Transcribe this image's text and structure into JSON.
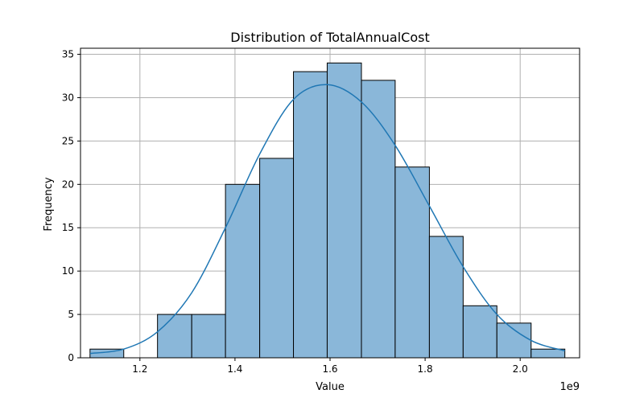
{
  "chart_data": {
    "type": "bar",
    "title": "Distribution of TotalAnnualCost",
    "xlabel": "Value",
    "ylabel": "Frequency",
    "x_offset_label": "1e9",
    "xlim": [
      1.075,
      2.125
    ],
    "ylim": [
      0,
      35.7
    ],
    "grid": true,
    "bin_edges": [
      1.095,
      1.166,
      1.237,
      1.309,
      1.38,
      1.452,
      1.523,
      1.594,
      1.666,
      1.737,
      1.809,
      1.88,
      1.951,
      2.023,
      2.094
    ],
    "values": [
      1,
      0,
      5,
      5,
      20,
      23,
      33,
      34,
      32,
      22,
      14,
      6,
      4,
      1
    ],
    "x_ticks": [
      {
        "value": 1.2,
        "label": "1.2"
      },
      {
        "value": 1.4,
        "label": "1.4"
      },
      {
        "value": 1.6,
        "label": "1.6"
      },
      {
        "value": 1.8,
        "label": "1.8"
      },
      {
        "value": 2.0,
        "label": "2.0"
      }
    ],
    "y_ticks": [
      {
        "value": 0,
        "label": "0"
      },
      {
        "value": 5,
        "label": "5"
      },
      {
        "value": 10,
        "label": "10"
      },
      {
        "value": 15,
        "label": "15"
      },
      {
        "value": 20,
        "label": "20"
      },
      {
        "value": 25,
        "label": "25"
      },
      {
        "value": 30,
        "label": "30"
      },
      {
        "value": 35,
        "label": "35"
      }
    ],
    "kde": {
      "x": [
        1.095,
        1.166,
        1.237,
        1.309,
        1.38,
        1.452,
        1.523,
        1.594,
        1.666,
        1.737,
        1.809,
        1.88,
        1.951,
        2.023,
        2.094
      ],
      "y": [
        0.5,
        1.0,
        3.0,
        7.5,
        15.0,
        23.5,
        29.8,
        31.5,
        29.5,
        24.5,
        17.5,
        10.5,
        5.0,
        2.0,
        0.8
      ]
    },
    "colors": {
      "bar_fill": "#8ab7d9",
      "bar_edge": "#000000",
      "kde_line": "#1f77b4",
      "grid": "#b0b0b0"
    }
  }
}
